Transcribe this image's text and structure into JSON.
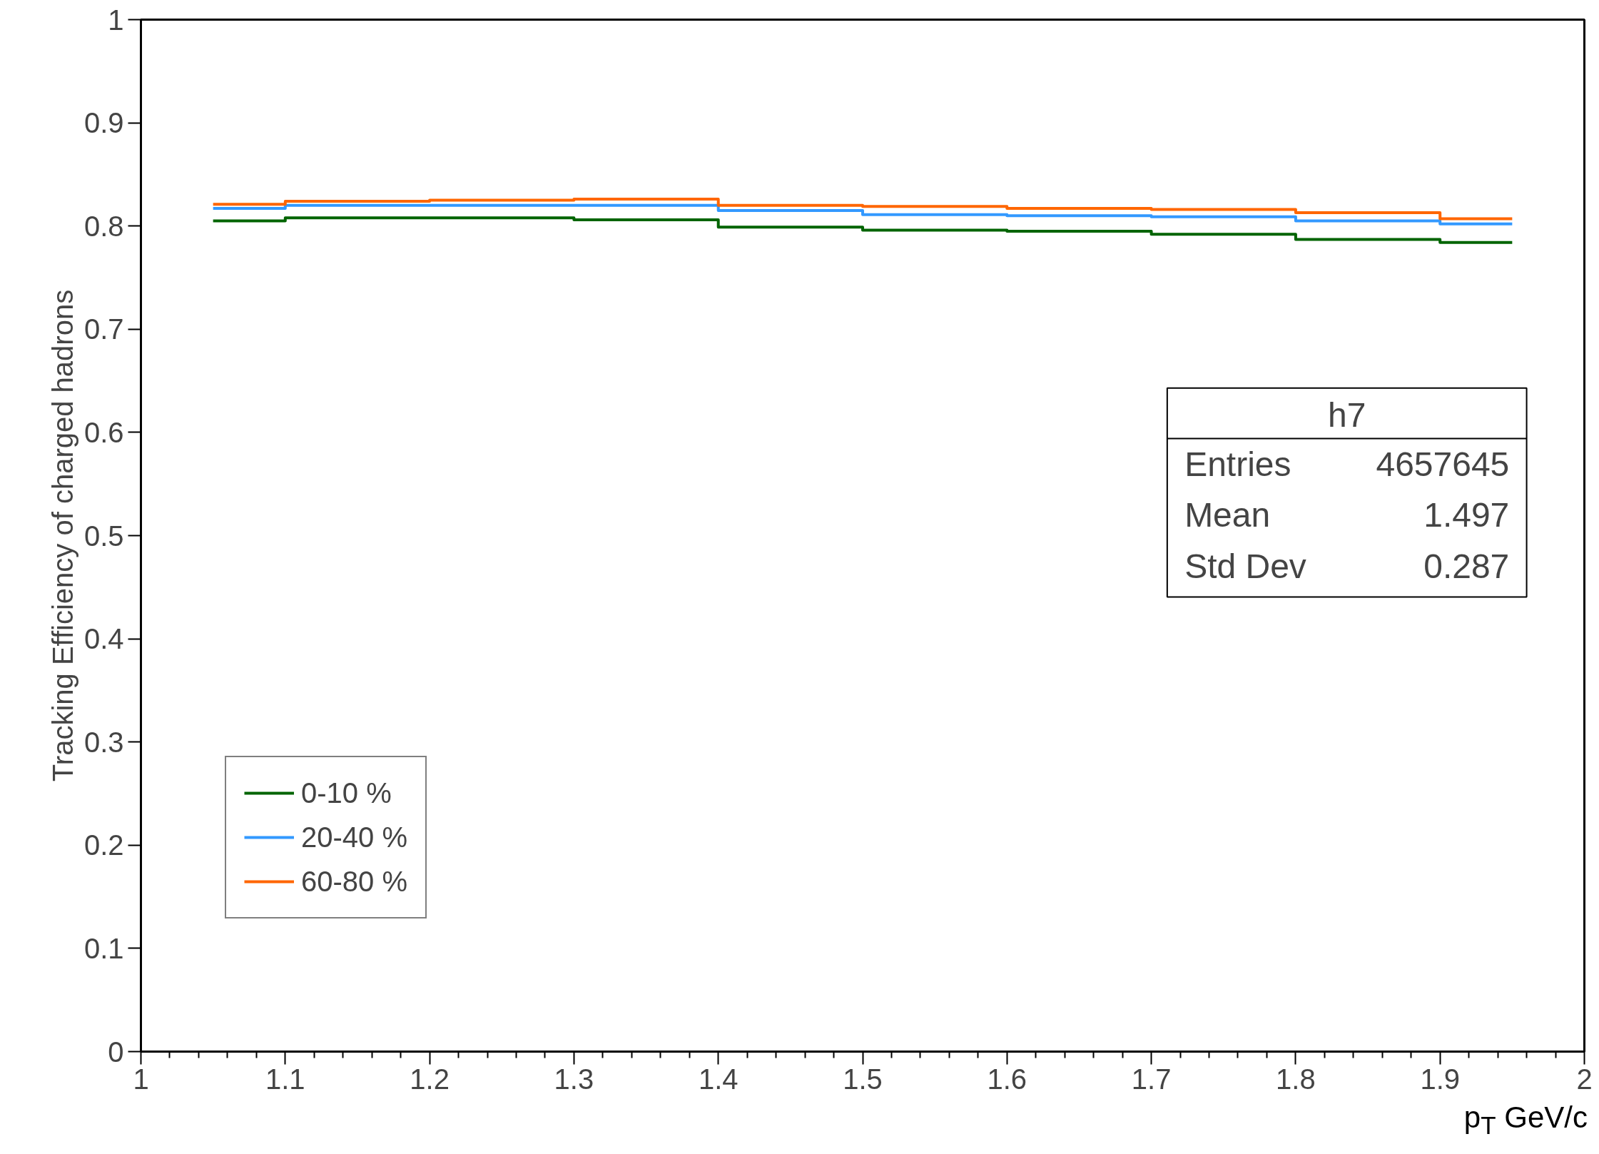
{
  "chart_data": {
    "type": "step",
    "xlabel": "p$_{T}$ GeV/c",
    "ylabel": "Tracking Efficiency of charged hadrons",
    "x": [
      1.05,
      1.15,
      1.25,
      1.35,
      1.45,
      1.55,
      1.65,
      1.75,
      1.85,
      1.95
    ],
    "series": [
      {
        "name": "0-10 %",
        "color": "#006400",
        "values": [
          0.805,
          0.808,
          0.808,
          0.806,
          0.799,
          0.796,
          0.795,
          0.792,
          0.787,
          0.784
        ]
      },
      {
        "name": "20-40 %",
        "color": "#3399ff",
        "values": [
          0.817,
          0.82,
          0.82,
          0.82,
          0.815,
          0.811,
          0.81,
          0.809,
          0.805,
          0.802
        ]
      },
      {
        "name": "60-80 %",
        "color": "#ff6600",
        "values": [
          0.821,
          0.824,
          0.825,
          0.826,
          0.82,
          0.819,
          0.817,
          0.816,
          0.813,
          0.807
        ]
      }
    ],
    "xlim": [
      1,
      2
    ],
    "ylim": [
      0,
      1
    ],
    "xticks": [
      1,
      1.1,
      1.2,
      1.3,
      1.4,
      1.5,
      1.6,
      1.7,
      1.8,
      1.9,
      2
    ],
    "yticks": [
      0,
      0.1,
      0.2,
      0.3,
      0.4,
      0.5,
      0.6,
      0.7,
      0.8,
      0.9,
      1
    ],
    "grid": false,
    "legend": "bottom left",
    "annotations": [
      "h7",
      "Entries 4657645",
      "Mean 1.497",
      "Std Dev 0.287"
    ]
  }
}
